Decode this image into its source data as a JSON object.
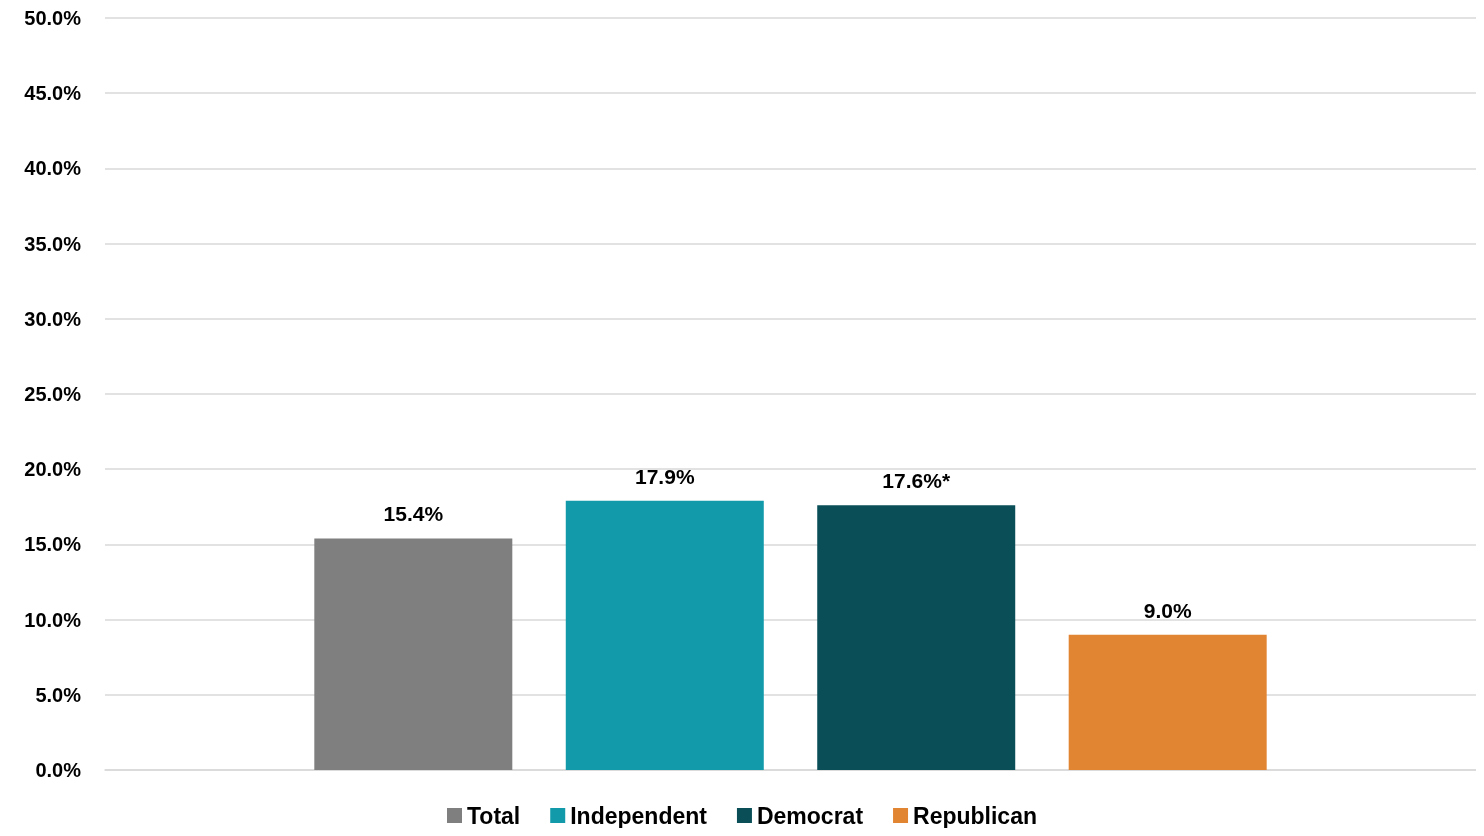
{
  "chart_data": {
    "type": "bar",
    "categories": [
      null
    ],
    "series": [
      {
        "name": "Total",
        "color": "#7f7f7f",
        "values": [
          15.4
        ],
        "value_labels": [
          "15.4%"
        ]
      },
      {
        "name": "Independent",
        "color": "#129aab",
        "values": [
          17.9
        ],
        "value_labels": [
          "17.9%"
        ]
      },
      {
        "name": "Democrat",
        "color": "#0a4f58",
        "values": [
          17.6
        ],
        "value_labels": [
          "17.6%*"
        ]
      },
      {
        "name": "Republican",
        "color": "#e28532",
        "values": [
          9.0
        ],
        "value_labels": [
          "9.0%"
        ]
      }
    ],
    "ylim": [
      0,
      50
    ],
    "yticks": [
      {
        "value": 0,
        "label": "0.0%"
      },
      {
        "value": 5,
        "label": "5.0%"
      },
      {
        "value": 10,
        "label": "10.0%"
      },
      {
        "value": 15,
        "label": "15.0%"
      },
      {
        "value": 20,
        "label": "20.0%"
      },
      {
        "value": 25,
        "label": "25.0%"
      },
      {
        "value": 30,
        "label": "30.0%"
      },
      {
        "value": 35,
        "label": "35.0%"
      },
      {
        "value": 40,
        "label": "40.0%"
      },
      {
        "value": 45,
        "label": "45.0%"
      },
      {
        "value": 50,
        "label": "50.0%"
      }
    ],
    "grid": true,
    "legend": "bottom"
  }
}
